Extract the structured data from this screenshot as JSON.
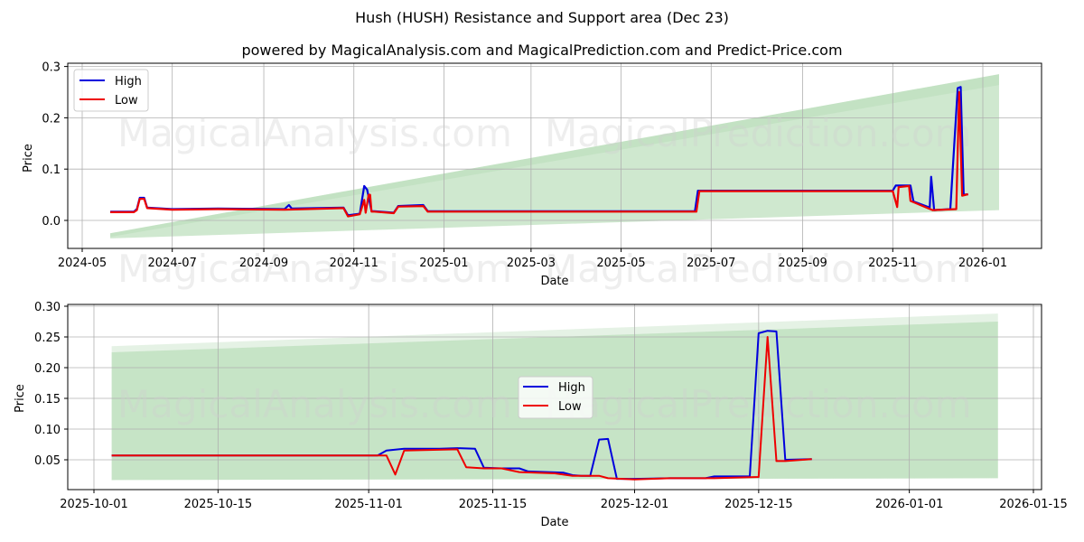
{
  "title": "Hush (HUSH) Resistance and Support area (Dec 23)",
  "subtitle": "powered by MagicalAnalysis.com and MagicalPrediction.com and Predict-Price.com",
  "watermarks": [
    "MagicalAnalysis.com",
    "MagicalPrediction.com"
  ],
  "colors": {
    "high": "#0000dd",
    "low": "#ee0000",
    "band": "#a8d5a8",
    "grid": "#b0b0b0"
  },
  "chart_data": [
    {
      "type": "line",
      "title": "Hush (HUSH) Resistance and Support area (Dec 23)",
      "xlabel": "Date",
      "ylabel": "Price",
      "ylim": [
        -0.055,
        0.307
      ],
      "yticks": [
        "0.0",
        "0.1",
        "0.2",
        "0.3"
      ],
      "xticks": [
        "2024-05",
        "2024-07",
        "2024-09",
        "2024-11",
        "2025-01",
        "2025-03",
        "2025-05",
        "2025-07",
        "2025-09",
        "2025-11",
        "2026-01"
      ],
      "grid": true,
      "legend": {
        "position": "upper left",
        "entries": [
          "High",
          "Low"
        ]
      },
      "band": {
        "x_start": "2024-05-20",
        "x_end": "2026-01-12",
        "lower_start": -0.035,
        "lower_end": 0.02,
        "upper_start": -0.025,
        "upper_end": 0.285
      },
      "series": [
        {
          "name": "High",
          "x": [
            "2024-05-20",
            "2024-06-05",
            "2024-06-07",
            "2024-06-09",
            "2024-06-12",
            "2024-06-14",
            "2024-07-01",
            "2024-08-01",
            "2024-09-15",
            "2024-09-18",
            "2024-09-20",
            "2024-10-25",
            "2024-10-28",
            "2024-11-05",
            "2024-11-08",
            "2024-11-10",
            "2024-11-13",
            "2024-11-15",
            "2024-11-28",
            "2024-12-01",
            "2024-12-18",
            "2024-12-21",
            "2025-06-20",
            "2025-06-22",
            "2025-11-01",
            "2025-11-03",
            "2025-11-13",
            "2025-11-15",
            "2025-11-26",
            "2025-11-27",
            "2025-11-29",
            "2025-12-10",
            "2025-12-15",
            "2025-12-17",
            "2025-12-19",
            "2025-12-22"
          ],
          "values": [
            0.017,
            0.017,
            0.022,
            0.044,
            0.044,
            0.025,
            0.022,
            0.023,
            0.022,
            0.03,
            0.023,
            0.025,
            0.01,
            0.013,
            0.067,
            0.06,
            0.018,
            0.018,
            0.015,
            0.028,
            0.03,
            0.018,
            0.018,
            0.058,
            0.058,
            0.068,
            0.068,
            0.037,
            0.025,
            0.085,
            0.02,
            0.022,
            0.258,
            0.26,
            0.05,
            0.051
          ]
        },
        {
          "name": "Low",
          "x": [
            "2024-05-20",
            "2024-06-05",
            "2024-06-07",
            "2024-06-09",
            "2024-06-12",
            "2024-06-14",
            "2024-07-01",
            "2024-08-01",
            "2024-09-15",
            "2024-10-25",
            "2024-10-28",
            "2024-11-05",
            "2024-11-08",
            "2024-11-09",
            "2024-11-11",
            "2024-11-12",
            "2024-11-13",
            "2024-11-15",
            "2024-11-28",
            "2024-12-01",
            "2024-12-18",
            "2024-12-21",
            "2025-06-21",
            "2025-06-23",
            "2025-11-01",
            "2025-11-04",
            "2025-11-05",
            "2025-11-12",
            "2025-11-13",
            "2025-11-28",
            "2025-12-14",
            "2025-12-16",
            "2025-12-18",
            "2025-12-22"
          ],
          "values": [
            0.016,
            0.016,
            0.02,
            0.042,
            0.042,
            0.024,
            0.021,
            0.022,
            0.021,
            0.024,
            0.008,
            0.012,
            0.04,
            0.015,
            0.05,
            0.05,
            0.017,
            0.017,
            0.014,
            0.027,
            0.028,
            0.017,
            0.017,
            0.057,
            0.057,
            0.026,
            0.065,
            0.067,
            0.038,
            0.02,
            0.022,
            0.25,
            0.048,
            0.051
          ]
        }
      ]
    },
    {
      "type": "line",
      "xlabel": "Date",
      "ylabel": "Price",
      "ylim": [
        0.0015,
        0.303
      ],
      "yticks": [
        "0.05",
        "0.10",
        "0.15",
        "0.20",
        "0.25",
        "0.30"
      ],
      "xticks": [
        "2025-10-01",
        "2025-10-15",
        "2025-11-01",
        "2025-11-15",
        "2025-12-01",
        "2025-12-15",
        "2026-01-01",
        "2026-01-15"
      ],
      "grid": true,
      "legend": {
        "position": "center",
        "entries": [
          "High",
          "Low"
        ]
      },
      "band": {
        "x_start": "2025-10-03",
        "x_end": "2026-01-11",
        "lower_start": 0.017,
        "lower_end": 0.02,
        "upper_inner_start": 0.225,
        "upper_inner_end": 0.275,
        "upper_outer_start": 0.235,
        "upper_outer_end": 0.288
      },
      "series": [
        {
          "name": "High",
          "x": [
            "2025-10-03",
            "2025-11-02",
            "2025-11-03",
            "2025-11-05",
            "2025-11-09",
            "2025-11-11",
            "2025-11-13",
            "2025-11-14",
            "2025-11-16",
            "2025-11-18",
            "2025-11-19",
            "2025-11-23",
            "2025-11-24",
            "2025-11-25",
            "2025-11-26",
            "2025-11-27",
            "2025-11-28",
            "2025-11-29",
            "2025-12-01",
            "2025-12-05",
            "2025-12-09",
            "2025-12-10",
            "2025-12-14",
            "2025-12-15",
            "2025-12-16",
            "2025-12-17",
            "2025-12-18",
            "2025-12-21"
          ],
          "values": [
            0.057,
            0.057,
            0.065,
            0.068,
            0.068,
            0.069,
            0.068,
            0.037,
            0.036,
            0.036,
            0.031,
            0.029,
            0.025,
            0.024,
            0.024,
            0.083,
            0.084,
            0.019,
            0.019,
            0.02,
            0.02,
            0.023,
            0.023,
            0.256,
            0.26,
            0.259,
            0.05,
            0.051
          ]
        },
        {
          "name": "Low",
          "x": [
            "2025-10-03",
            "2025-11-03",
            "2025-11-04",
            "2025-11-05",
            "2025-11-11",
            "2025-11-12",
            "2025-11-14",
            "2025-11-16",
            "2025-11-18",
            "2025-11-22",
            "2025-11-24",
            "2025-11-27",
            "2025-11-28",
            "2025-12-01",
            "2025-12-05",
            "2025-12-10",
            "2025-12-15",
            "2025-12-16",
            "2025-12-17",
            "2025-12-18",
            "2025-12-21"
          ],
          "values": [
            0.057,
            0.057,
            0.026,
            0.065,
            0.067,
            0.038,
            0.036,
            0.036,
            0.03,
            0.028,
            0.024,
            0.024,
            0.02,
            0.018,
            0.02,
            0.02,
            0.022,
            0.25,
            0.048,
            0.048,
            0.051
          ]
        }
      ]
    }
  ]
}
